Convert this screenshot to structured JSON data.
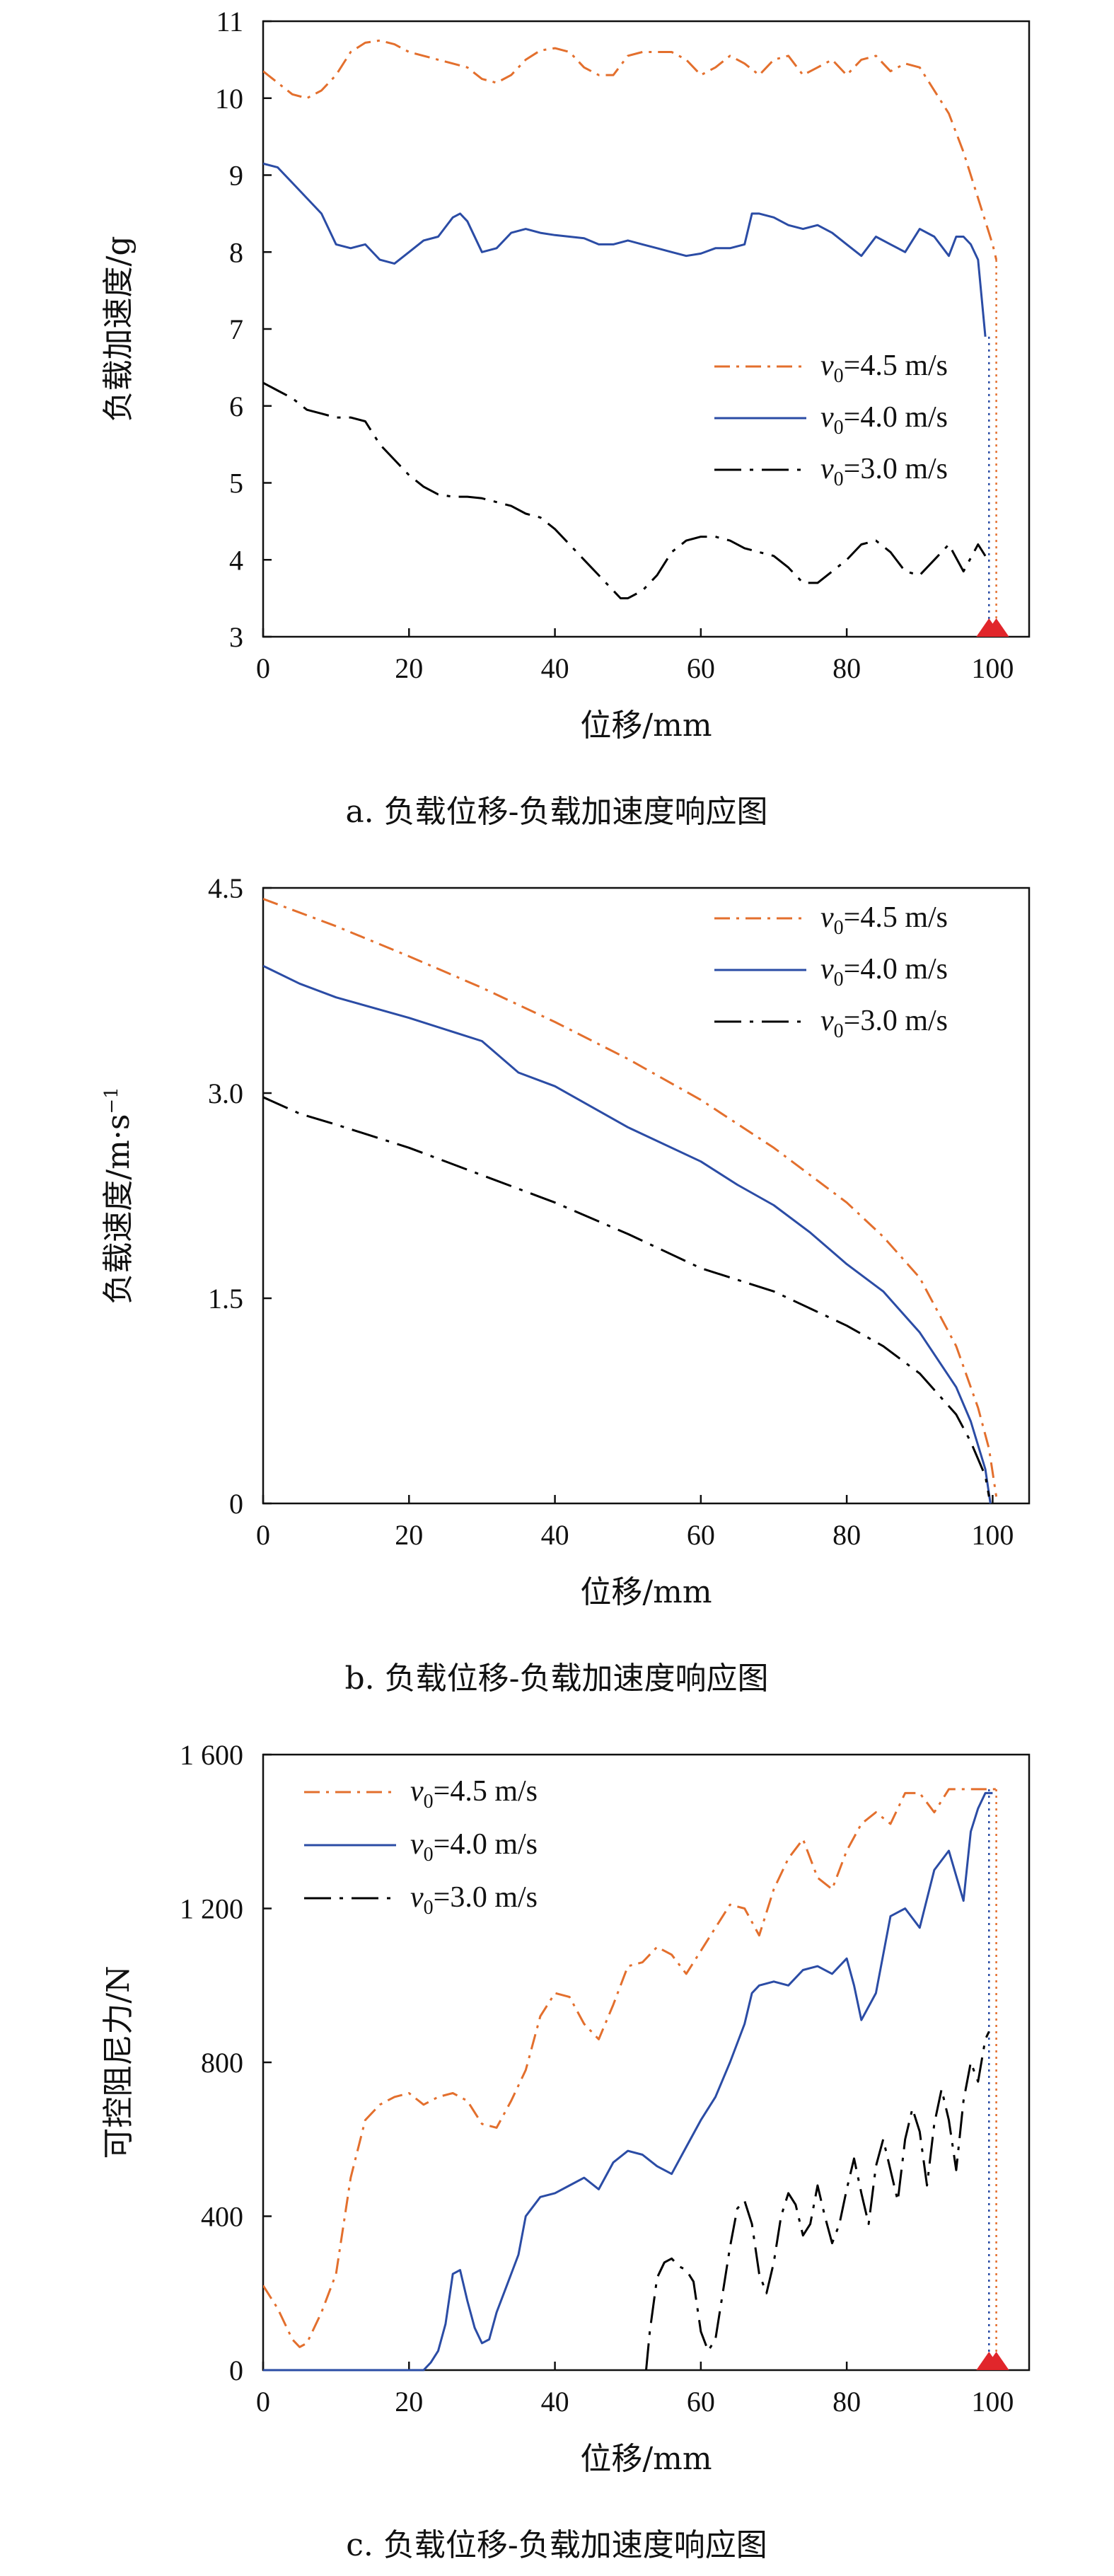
{
  "colors": {
    "v45": "#E36F2D",
    "v40": "#2B4CA5",
    "v30": "#000000",
    "marker": "#E1262B",
    "axis": "#111111"
  },
  "chart_data": [
    {
      "type": "line",
      "caption": "a. 负载位移-负载加速度响应图",
      "xlabel": "位移/mm",
      "ylabel": "负载加速度/g",
      "xlim": [
        0,
        105
      ],
      "ylim": [
        3,
        11
      ],
      "xticks": [
        0,
        20,
        40,
        60,
        80,
        100
      ],
      "yticks": [
        3,
        4,
        5,
        6,
        7,
        8,
        9,
        10,
        11
      ],
      "xtick_labels": [
        "0",
        "20",
        "40",
        "60",
        "80",
        "100"
      ],
      "ytick_labels": [
        "3",
        "4",
        "5",
        "6",
        "7",
        "8",
        "9",
        "10",
        "11"
      ],
      "legend_position": "right",
      "grid": false,
      "series": [
        {
          "name": "v0=4.5 m/s",
          "label_sym": "v",
          "label_sub": "0",
          "label_rest": "=4.5 m/s",
          "style": "dashdot",
          "color_key": "v45",
          "x": [
            0,
            2,
            4,
            6,
            8,
            10,
            12,
            14,
            16,
            18,
            20,
            22,
            24,
            26,
            28,
            30,
            32,
            34,
            36,
            38,
            40,
            42,
            44,
            46,
            48,
            50,
            52,
            54,
            56,
            58,
            60,
            62,
            64,
            66,
            68,
            70,
            72,
            74,
            76,
            78,
            80,
            82,
            84,
            86,
            88,
            90,
            92,
            94,
            96,
            98,
            99,
            100,
            100.5
          ],
          "y": [
            10.35,
            10.2,
            10.05,
            10.0,
            10.1,
            10.3,
            10.6,
            10.72,
            10.75,
            10.7,
            10.6,
            10.55,
            10.5,
            10.45,
            10.4,
            10.25,
            10.2,
            10.3,
            10.5,
            10.62,
            10.65,
            10.6,
            10.4,
            10.3,
            10.3,
            10.55,
            10.6,
            10.6,
            10.6,
            10.5,
            10.3,
            10.4,
            10.55,
            10.45,
            10.3,
            10.5,
            10.55,
            10.3,
            10.4,
            10.5,
            10.3,
            10.5,
            10.55,
            10.35,
            10.45,
            10.4,
            10.1,
            9.8,
            9.3,
            8.7,
            8.4,
            8.1,
            7.9
          ]
        },
        {
          "name": "v0=4.0 m/s",
          "label_sym": "v",
          "label_sub": "0",
          "label_rest": "=4.0 m/s",
          "style": "solid",
          "color_key": "v40",
          "x": [
            0,
            2,
            4,
            6,
            8,
            10,
            12,
            14,
            16,
            18,
            20,
            22,
            24,
            26,
            27,
            28,
            30,
            32,
            34,
            36,
            38,
            40,
            42,
            44,
            46,
            48,
            50,
            52,
            54,
            56,
            58,
            60,
            62,
            64,
            66,
            67,
            68,
            70,
            72,
            74,
            76,
            78,
            80,
            82,
            84,
            86,
            88,
            90,
            92,
            94,
            95,
            96,
            97,
            98,
            99
          ],
          "y": [
            9.15,
            9.1,
            8.9,
            8.7,
            8.5,
            8.1,
            8.05,
            8.1,
            7.9,
            7.85,
            8.0,
            8.15,
            8.2,
            8.45,
            8.5,
            8.4,
            8.0,
            8.05,
            8.25,
            8.3,
            8.25,
            8.22,
            8.2,
            8.18,
            8.1,
            8.1,
            8.15,
            8.1,
            8.05,
            8.0,
            7.95,
            7.98,
            8.05,
            8.05,
            8.1,
            8.5,
            8.5,
            8.45,
            8.35,
            8.3,
            8.35,
            8.25,
            8.1,
            7.95,
            8.2,
            8.1,
            8.0,
            8.3,
            8.2,
            7.95,
            8.2,
            8.2,
            8.1,
            7.9,
            6.9
          ]
        },
        {
          "name": "v0=3.0 m/s",
          "label_sym": "v",
          "label_sub": "0",
          "label_rest": "=3.0 m/s",
          "style": "dashdotlong",
          "color_key": "v30",
          "x": [
            0,
            2,
            4,
            6,
            8,
            10,
            12,
            14,
            16,
            18,
            20,
            22,
            24,
            26,
            28,
            30,
            32,
            34,
            36,
            38,
            40,
            42,
            44,
            46,
            48,
            49,
            50,
            52,
            54,
            56,
            58,
            60,
            62,
            64,
            66,
            68,
            70,
            72,
            74,
            76,
            78,
            80,
            82,
            84,
            86,
            88,
            90,
            92,
            94,
            96,
            98,
            99
          ],
          "y": [
            6.3,
            6.2,
            6.1,
            5.95,
            5.9,
            5.85,
            5.85,
            5.8,
            5.5,
            5.3,
            5.1,
            4.95,
            4.85,
            4.82,
            4.82,
            4.8,
            4.75,
            4.7,
            4.6,
            4.55,
            4.4,
            4.2,
            4.0,
            3.8,
            3.6,
            3.5,
            3.5,
            3.6,
            3.8,
            4.1,
            4.25,
            4.3,
            4.3,
            4.25,
            4.15,
            4.1,
            4.05,
            3.9,
            3.7,
            3.7,
            3.85,
            4.0,
            4.2,
            4.25,
            4.1,
            3.85,
            3.8,
            4.0,
            4.2,
            3.85,
            4.2,
            4.05
          ]
        }
      ],
      "end_markers_x": [
        99.5,
        100.5
      ]
    },
    {
      "type": "line",
      "caption": "b. 负载位移-负载加速度响应图",
      "xlabel": "位移/mm",
      "ylabel": "负载速度/m·s",
      "ylabel_sup": "−1",
      "xlim": [
        0,
        105
      ],
      "ylim": [
        0,
        4.5
      ],
      "xticks": [
        0,
        20,
        40,
        60,
        80,
        100
      ],
      "yticks": [
        0,
        1.5,
        3.0,
        4.5
      ],
      "xtick_labels": [
        "0",
        "20",
        "40",
        "60",
        "80",
        "100"
      ],
      "ytick_labels": [
        "0",
        "1.5",
        "3.0",
        "4.5"
      ],
      "legend_position": "top-right",
      "grid": false,
      "series": [
        {
          "name": "v0=4.5 m/s",
          "label_sym": "v",
          "label_sub": "0",
          "label_rest": "=4.5 m/s",
          "style": "dashdot",
          "color_key": "v45",
          "x": [
            0,
            10,
            20,
            30,
            40,
            50,
            60,
            70,
            80,
            85,
            90,
            95,
            98,
            99.5,
            100.5
          ],
          "y": [
            4.42,
            4.22,
            4.0,
            3.77,
            3.52,
            3.25,
            2.95,
            2.6,
            2.2,
            1.95,
            1.65,
            1.15,
            0.7,
            0.4,
            0.05
          ]
        },
        {
          "name": "v0=4.0 m/s",
          "label_sym": "v",
          "label_sub": "0",
          "label_rest": "=4.0 m/s",
          "style": "solid",
          "color_key": "v40",
          "x": [
            0,
            5,
            10,
            20,
            30,
            35,
            40,
            50,
            60,
            65,
            70,
            75,
            80,
            85,
            90,
            95,
            97,
            99,
            99.7
          ],
          "y": [
            3.93,
            3.8,
            3.7,
            3.55,
            3.38,
            3.15,
            3.05,
            2.75,
            2.5,
            2.33,
            2.18,
            1.98,
            1.75,
            1.55,
            1.25,
            0.85,
            0.6,
            0.25,
            0.0
          ]
        },
        {
          "name": "v0=3.0 m/s",
          "label_sym": "v",
          "label_sub": "0",
          "label_rest": "=3.0 m/s",
          "style": "dashdotlong",
          "color_key": "v30",
          "x": [
            0,
            5,
            10,
            20,
            30,
            40,
            50,
            60,
            70,
            80,
            85,
            90,
            95,
            97,
            99,
            99.5
          ],
          "y": [
            2.97,
            2.85,
            2.77,
            2.6,
            2.4,
            2.2,
            1.97,
            1.72,
            1.55,
            1.3,
            1.15,
            0.95,
            0.65,
            0.45,
            0.2,
            0.05
          ]
        }
      ]
    },
    {
      "type": "line",
      "caption": "c. 负载位移-负载加速度响应图",
      "xlabel": "位移/mm",
      "ylabel": "可控阻尼力/N",
      "xlim": [
        0,
        105
      ],
      "ylim": [
        0,
        1600
      ],
      "xticks": [
        0,
        20,
        40,
        60,
        80,
        100
      ],
      "yticks": [
        0,
        400,
        800,
        1200,
        1600
      ],
      "xtick_labels": [
        "0",
        "20",
        "40",
        "60",
        "80",
        "100"
      ],
      "ytick_labels": [
        "0",
        "400",
        "800",
        "1 200",
        "1 600"
      ],
      "legend_position": "top-left",
      "grid": false,
      "series": [
        {
          "name": "v0=4.5 m/s",
          "label_sym": "v",
          "label_sub": "0",
          "label_rest": "=4.5 m/s",
          "style": "dashdot",
          "color_key": "v45",
          "x": [
            0,
            2,
            4,
            5,
            6,
            8,
            10,
            12,
            14,
            16,
            18,
            20,
            22,
            24,
            26,
            28,
            30,
            32,
            34,
            36,
            38,
            40,
            42,
            44,
            46,
            48,
            50,
            52,
            54,
            56,
            58,
            60,
            62,
            64,
            66,
            68,
            70,
            72,
            74,
            76,
            78,
            80,
            82,
            84,
            86,
            88,
            90,
            92,
            94,
            96,
            98,
            100,
            101
          ],
          "y": [
            220,
            160,
            80,
            60,
            70,
            150,
            250,
            500,
            650,
            690,
            710,
            720,
            690,
            710,
            720,
            700,
            640,
            630,
            700,
            780,
            920,
            980,
            970,
            900,
            860,
            950,
            1050,
            1060,
            1100,
            1080,
            1030,
            1090,
            1150,
            1210,
            1200,
            1130,
            1250,
            1330,
            1380,
            1280,
            1250,
            1350,
            1420,
            1450,
            1420,
            1500,
            1500,
            1450,
            1510,
            1510,
            1510,
            1510,
            1510
          ]
        },
        {
          "name": "v0=4.0 m/s",
          "label_sym": "v",
          "label_sub": "0",
          "label_rest": "=4.0 m/s",
          "style": "solid",
          "color_key": "v40",
          "x": [
            0,
            5,
            10,
            15,
            20,
            22,
            23,
            24,
            25,
            26,
            27,
            28,
            29,
            30,
            31,
            32,
            33,
            34,
            35,
            36,
            38,
            40,
            42,
            44,
            46,
            48,
            50,
            52,
            54,
            56,
            58,
            60,
            62,
            64,
            66,
            67,
            68,
            70,
            72,
            74,
            76,
            78,
            80,
            81,
            82,
            84,
            86,
            88,
            90,
            92,
            94,
            96,
            97,
            98,
            99,
            100
          ],
          "y": [
            0,
            0,
            0,
            0,
            0,
            0,
            20,
            50,
            120,
            250,
            260,
            180,
            110,
            70,
            80,
            150,
            200,
            250,
            300,
            400,
            450,
            460,
            480,
            500,
            470,
            540,
            570,
            560,
            530,
            510,
            580,
            650,
            710,
            800,
            900,
            980,
            1000,
            1010,
            1000,
            1040,
            1050,
            1030,
            1070,
            1000,
            910,
            980,
            1180,
            1200,
            1150,
            1300,
            1350,
            1220,
            1400,
            1460,
            1500,
            1500
          ]
        },
        {
          "name": "v0=3.0 m/s",
          "label_sym": "v",
          "label_sub": "0",
          "label_rest": "=3.0 m/s",
          "style": "dashdotlong",
          "color_key": "v30",
          "x": [
            52.5,
            53,
            54,
            55,
            56,
            57,
            58,
            59,
            60,
            61,
            62,
            63,
            64,
            65,
            66,
            67,
            68,
            69,
            70,
            71,
            72,
            73,
            74,
            75,
            76,
            77,
            78,
            79,
            80,
            81,
            82,
            83,
            84,
            85,
            86,
            87,
            88,
            89,
            90,
            91,
            92,
            93,
            94,
            95,
            96,
            97,
            98,
            99,
            99.5
          ],
          "y": [
            0,
            100,
            240,
            280,
            290,
            270,
            260,
            230,
            100,
            50,
            80,
            200,
            320,
            420,
            440,
            380,
            250,
            200,
            280,
            400,
            460,
            430,
            350,
            380,
            480,
            400,
            330,
            380,
            470,
            550,
            460,
            380,
            530,
            600,
            520,
            440,
            600,
            680,
            620,
            480,
            640,
            730,
            650,
            520,
            700,
            800,
            750,
            860,
            880
          ]
        }
      ],
      "end_markers_x": [
        99.5,
        100.5
      ]
    }
  ]
}
